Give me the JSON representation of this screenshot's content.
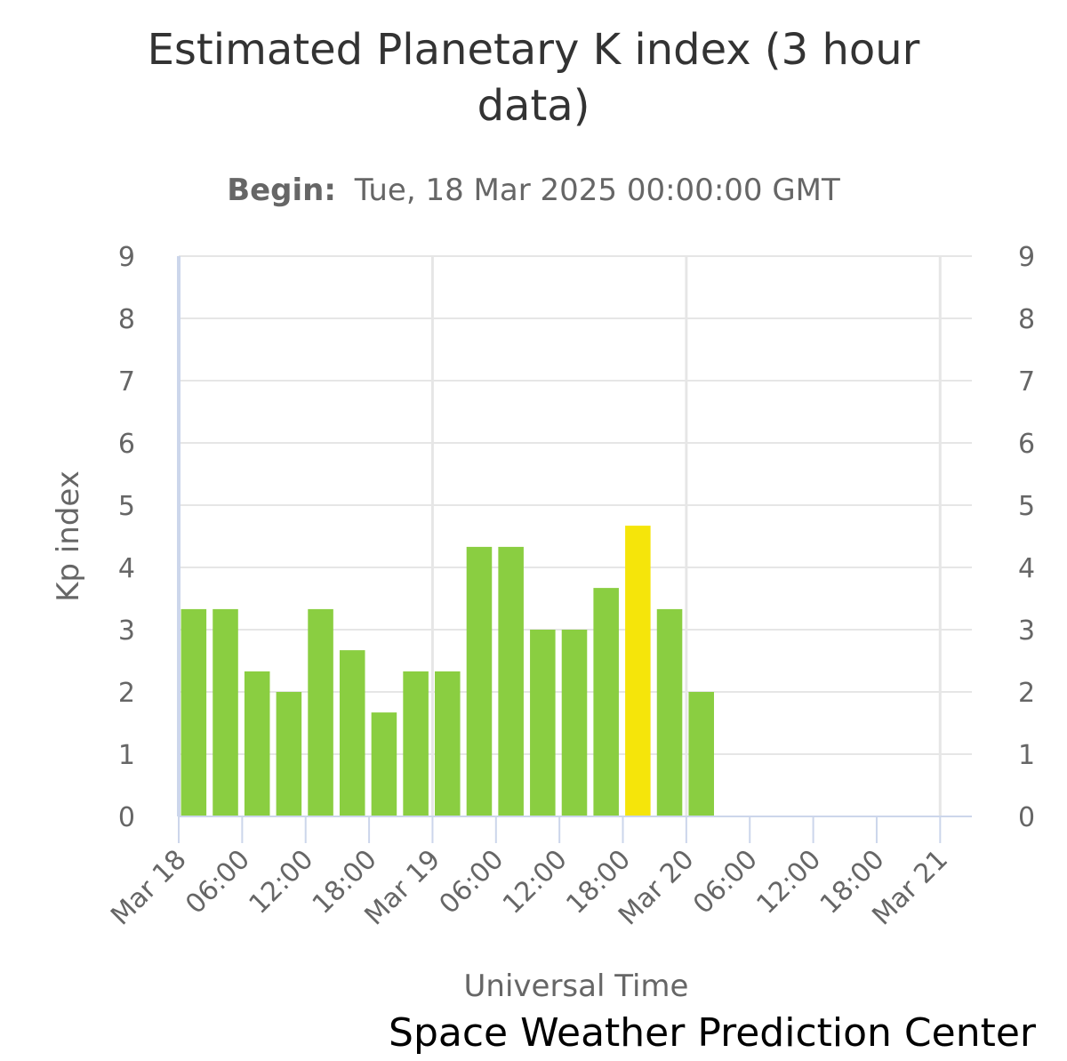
{
  "chart_data": {
    "type": "bar",
    "title": "Estimated Planetary K index (3 hour data)",
    "title_lines": [
      "Estimated Planetary K index (3 hour",
      "data)"
    ],
    "subtitle_label": "Begin:",
    "subtitle_value": "Tue, 18 Mar 2025 00:00:00 GMT",
    "ylabel": "Kp index",
    "xlabel": "Universal Time",
    "credit": "Space Weather Prediction Center",
    "ylim": [
      0,
      9
    ],
    "yticks": [
      "0",
      "1",
      "2",
      "3",
      "4",
      "5",
      "6",
      "7",
      "8",
      "9"
    ],
    "x_unit": "hours since Mar 18 00:00 UTC",
    "xlim": [
      0,
      75
    ],
    "xticks": [
      {
        "hour": 0,
        "label": "Mar 18"
      },
      {
        "hour": 6,
        "label": "06:00"
      },
      {
        "hour": 12,
        "label": "12:00"
      },
      {
        "hour": 18,
        "label": "18:00"
      },
      {
        "hour": 24,
        "label": "Mar 19"
      },
      {
        "hour": 30,
        "label": "06:00"
      },
      {
        "hour": 36,
        "label": "12:00"
      },
      {
        "hour": 42,
        "label": "18:00"
      },
      {
        "hour": 48,
        "label": "Mar 20"
      },
      {
        "hour": 54,
        "label": "06:00"
      },
      {
        "hour": 60,
        "label": "12:00"
      },
      {
        "hour": 66,
        "label": "18:00"
      },
      {
        "hour": 72,
        "label": "Mar 21"
      }
    ],
    "x": [
      0,
      3,
      6,
      9,
      12,
      15,
      18,
      21,
      24,
      27,
      30,
      33,
      36,
      39,
      42,
      45,
      48
    ],
    "values": [
      3.33,
      3.33,
      2.33,
      2,
      3.33,
      2.67,
      1.67,
      2.33,
      2.33,
      4.33,
      4.33,
      3,
      3,
      3.67,
      4.67,
      3.33,
      2
    ],
    "colors": {
      "normal": "#8ace41",
      "elevated": "#f5e50a",
      "grid": "#e6e6e6",
      "axis": "#ccd6eb"
    },
    "elevated_threshold": 4.5
  }
}
